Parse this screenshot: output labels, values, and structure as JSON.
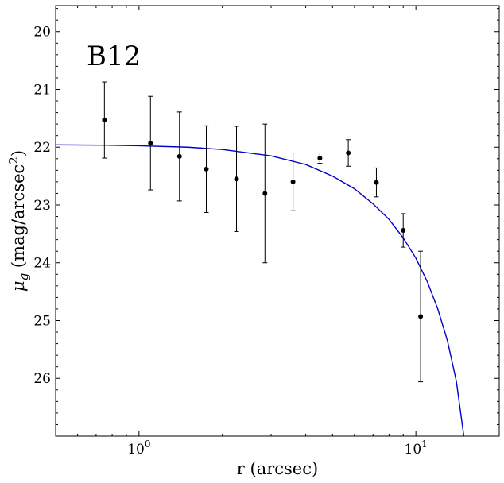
{
  "chart_data": {
    "type": "scatter",
    "annotation": "B12",
    "xlabel": "r (arcsec)",
    "ylabel_base": "μ",
    "ylabel_sub": "g",
    "ylabel_unit_open": " (mag/arcsec",
    "ylabel_unit_sup": "2",
    "ylabel_unit_close": ")",
    "xscale": "log",
    "xlim": [
      0.5,
      20
    ],
    "ylim": [
      27.0,
      19.55
    ],
    "y_inverted": true,
    "grid": false,
    "x_major_ticks": [
      1,
      10
    ],
    "x_tick_labels": [
      {
        "base": "10",
        "exp": "0"
      },
      {
        "base": "10",
        "exp": "1"
      }
    ],
    "y_major_ticks": [
      20,
      21,
      22,
      23,
      24,
      25,
      26
    ],
    "y_tick_labels": [
      "20",
      "21",
      "22",
      "23",
      "24",
      "25",
      "26"
    ],
    "points": {
      "color": "#000000",
      "x": [
        0.75,
        1.1,
        1.4,
        1.75,
        2.25,
        2.85,
        3.6,
        4.5,
        5.7,
        7.2,
        9.0,
        10.4
      ],
      "y": [
        21.53,
        21.93,
        22.16,
        22.38,
        22.55,
        22.8,
        22.6,
        22.19,
        22.1,
        22.61,
        23.44,
        24.93
      ],
      "yerr": [
        0.66,
        0.81,
        0.77,
        0.75,
        0.91,
        1.2,
        0.5,
        0.09,
        0.23,
        0.25,
        0.29,
        1.13
      ]
    },
    "model": {
      "color": "#0000cc",
      "x": [
        0.5,
        0.75,
        1,
        1.5,
        2,
        3,
        4,
        5,
        6,
        7,
        8,
        9,
        10,
        11,
        12,
        13,
        14,
        14.9
      ],
      "y": [
        21.96,
        21.965,
        21.975,
        22.0,
        22.04,
        22.15,
        22.3,
        22.5,
        22.72,
        22.98,
        23.25,
        23.57,
        23.92,
        24.33,
        24.8,
        25.35,
        26.05,
        27.0
      ]
    }
  }
}
